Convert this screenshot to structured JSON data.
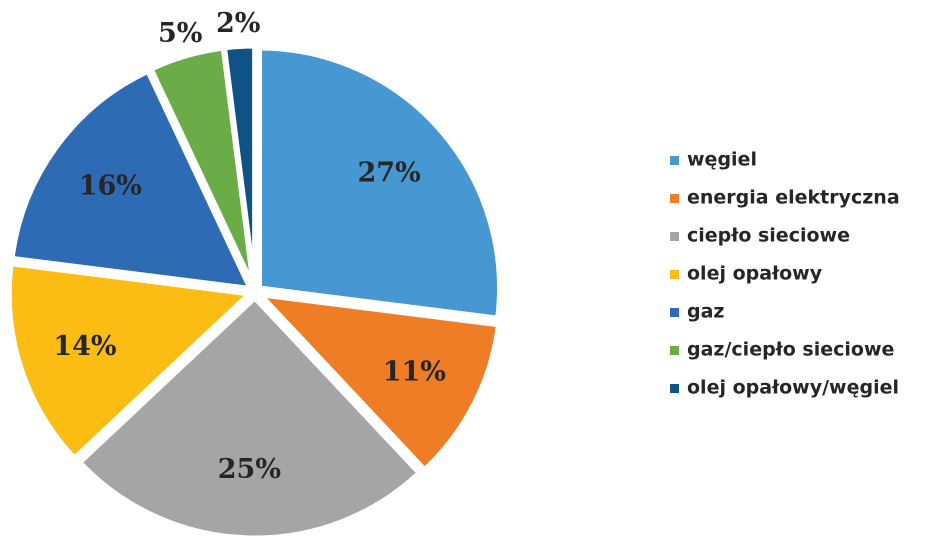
{
  "chart_data": {
    "type": "pie",
    "categories": [
      "węgiel",
      "energia elektryczna",
      "ciepło sieciowe",
      "olej opałowy",
      "gaz",
      "gaz/ciepło sieciowe",
      "olej opałowy/węgiel"
    ],
    "values": [
      27,
      11,
      25,
      14,
      16,
      5,
      2
    ],
    "value_labels": [
      "27%",
      "11%",
      "25%",
      "14%",
      "16%",
      "5%",
      "2%"
    ],
    "colors": [
      "#4697d2",
      "#ee7d26",
      "#a5a5a5",
      "#fbbd14",
      "#2e6bb5",
      "#6aac46",
      "#0f5286"
    ],
    "legend": "right"
  }
}
